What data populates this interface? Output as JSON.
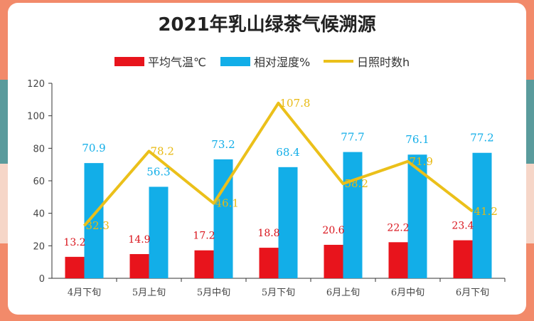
{
  "chart_data": {
    "type": "bar",
    "title": "2021年乳山绿茶气候溯源",
    "categories": [
      "4月下旬",
      "5月上旬",
      "5月中旬",
      "5月下旬",
      "6月上旬",
      "6月中旬",
      "6月下旬"
    ],
    "ylim": [
      0,
      120
    ],
    "yticks": [
      "0",
      "20",
      "40",
      "60",
      "80",
      "100",
      "120"
    ],
    "legend_position": "top",
    "grid": false,
    "series": [
      {
        "name": "平均气温℃",
        "kind": "bar",
        "color": "#e8141c",
        "values": [
          13.2,
          14.9,
          17.2,
          18.8,
          20.6,
          22.2,
          23.4
        ],
        "labels": [
          "13.2",
          "14.9",
          "17.2",
          "18.8",
          "20.6",
          "22.2",
          "23.4"
        ]
      },
      {
        "name": "相对湿度%",
        "kind": "bar",
        "color": "#12aee8",
        "values": [
          70.9,
          56.3,
          73.2,
          68.4,
          77.7,
          76.1,
          77.2
        ],
        "labels": [
          "70.9",
          "56.3",
          "73.2",
          "68.4",
          "77.7",
          "76.1",
          "77.2"
        ]
      },
      {
        "name": "日照时数h",
        "kind": "line",
        "color": "#ebc01a",
        "values": [
          32.3,
          78.2,
          46.1,
          107.8,
          58.2,
          71.9,
          41.2
        ],
        "labels": [
          "32.3",
          "78.2",
          "46.1",
          "107.8",
          "58.2",
          "71.9",
          "41.2"
        ]
      }
    ]
  }
}
